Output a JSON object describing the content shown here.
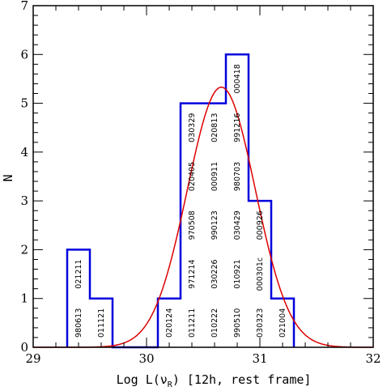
{
  "chart_data": {
    "type": "histogram",
    "title": "",
    "xlabel": "Log L(ν",
    "xlabel_sub": "R",
    "xlabel_rest": ") [12h, rest frame]",
    "ylabel": "N",
    "xlim": [
      29,
      32
    ],
    "ylim": [
      0,
      7
    ],
    "x_ticks": [
      "29",
      "30",
      "31",
      "32"
    ],
    "y_ticks": [
      "0",
      "1",
      "2",
      "3",
      "4",
      "5",
      "6",
      "7"
    ],
    "grid": false,
    "legend": "none",
    "histogram": {
      "color": "#0000dd",
      "bin_width": 0.2,
      "bins": [
        {
          "left": 29.3,
          "count": 2,
          "labels": [
            "980613",
            "021211"
          ]
        },
        {
          "left": 29.5,
          "count": 1,
          "labels": [
            "011121"
          ]
        },
        {
          "left": 29.7,
          "count": 0,
          "labels": []
        },
        {
          "left": 29.9,
          "count": 0,
          "labels": []
        },
        {
          "left": 30.1,
          "count": 1,
          "labels": [
            "020124"
          ]
        },
        {
          "left": 30.3,
          "count": 5,
          "labels": [
            "011211",
            "971214",
            "970508",
            "020405",
            "030329"
          ]
        },
        {
          "left": 30.5,
          "count": 5,
          "labels": [
            "010222",
            "030226",
            "990123",
            "000911",
            "020813"
          ]
        },
        {
          "left": 30.7,
          "count": 6,
          "labels": [
            "990510",
            "010921",
            "030429",
            "980703",
            "991216",
            "000418"
          ]
        },
        {
          "left": 30.9,
          "count": 3,
          "labels": [
            "030323",
            "000301c",
            "000926"
          ]
        },
        {
          "left": 31.1,
          "count": 1,
          "labels": [
            "021004"
          ]
        }
      ]
    },
    "fit": {
      "type": "gaussian",
      "color": "#dd0000",
      "peak": 5.33,
      "mean": 30.66,
      "sigma": 0.3
    }
  }
}
